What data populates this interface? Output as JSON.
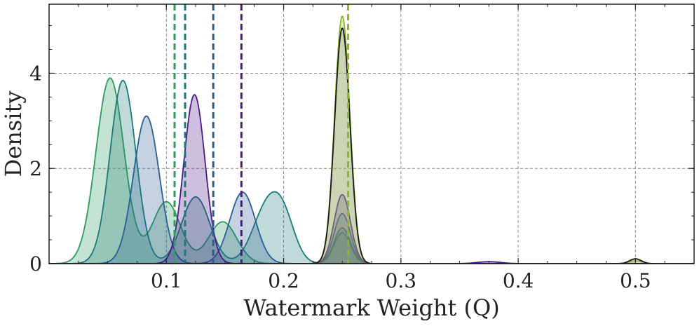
{
  "chart_data": {
    "type": "area",
    "title": "",
    "xlabel": "Watermark Weight (Q)",
    "ylabel": "Density",
    "xlim": [
      0.0,
      0.55
    ],
    "ylim": [
      0,
      5.45
    ],
    "xticks": [
      0.1,
      0.2,
      0.3,
      0.4,
      0.5
    ],
    "xtick_labels": [
      "0.1",
      "0.2",
      "0.3",
      "0.4",
      "0.5"
    ],
    "yticks": [
      0,
      2,
      4
    ],
    "ytick_labels": [
      "0",
      "2",
      "4"
    ],
    "grid": true,
    "legend": "none",
    "series": [
      {
        "color": "#2e9b5f",
        "mean_line": 0.107,
        "peaks": [
          [
            0.052,
            3.9,
            0.012
          ],
          [
            0.1,
            1.3,
            0.012
          ],
          [
            0.148,
            0.88,
            0.012
          ],
          [
            0.25,
            0.65,
            0.007
          ]
        ]
      },
      {
        "color": "#1a7a78",
        "mean_line": 0.116,
        "peaks": [
          [
            0.063,
            3.85,
            0.011
          ],
          [
            0.125,
            1.4,
            0.012
          ],
          [
            0.185,
            1.1,
            0.012
          ],
          [
            0.2,
            0.8,
            0.01
          ],
          [
            0.25,
            0.75,
            0.007
          ]
        ]
      },
      {
        "color": "#2a5e95",
        "mean_line": 0.14,
        "peaks": [
          [
            0.083,
            3.1,
            0.011
          ],
          [
            0.165,
            1.5,
            0.011
          ],
          [
            0.25,
            1.05,
            0.007
          ]
        ]
      },
      {
        "color": "#4b1a8a",
        "mean_line": 0.164,
        "peaks": [
          [
            0.124,
            3.55,
            0.009
          ],
          [
            0.25,
            1.45,
            0.007
          ],
          [
            0.375,
            0.04,
            0.01
          ]
        ]
      },
      {
        "color": "#8ab82a",
        "mean_line": 0.255,
        "peaks": [
          [
            0.25,
            5.2,
            0.0065
          ],
          [
            0.5,
            0.06,
            0.005
          ]
        ]
      },
      {
        "color": "#1a1a1a",
        "fill": "#9a9a88",
        "peaks": [
          [
            0.25,
            4.95,
            0.0065
          ],
          [
            0.5,
            0.1,
            0.005
          ]
        ]
      }
    ]
  }
}
